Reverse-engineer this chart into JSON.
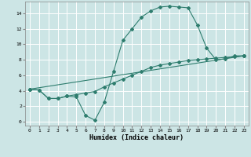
{
  "title": "",
  "xlabel": "Humidex (Indice chaleur)",
  "bg_color": "#cce5e5",
  "grid_color": "#ffffff",
  "line_color": "#2e7d6e",
  "xlim": [
    -0.5,
    23.5
  ],
  "ylim": [
    -0.5,
    15.5
  ],
  "xticks": [
    0,
    1,
    2,
    3,
    4,
    5,
    6,
    7,
    8,
    9,
    10,
    11,
    12,
    13,
    14,
    15,
    16,
    17,
    18,
    19,
    20,
    21,
    22,
    23
  ],
  "yticks": [
    0,
    2,
    4,
    6,
    8,
    10,
    12,
    14
  ],
  "line1_x": [
    0,
    1,
    2,
    3,
    4,
    5,
    6,
    7,
    8,
    9,
    10,
    11,
    12,
    13,
    14,
    15,
    16,
    17,
    18,
    19,
    20,
    21,
    22,
    23
  ],
  "line1_y": [
    4.2,
    4.1,
    3.0,
    3.0,
    3.3,
    3.2,
    0.8,
    0.2,
    2.5,
    6.5,
    10.5,
    12.0,
    13.5,
    14.3,
    14.8,
    14.9,
    14.8,
    14.7,
    12.5,
    9.5,
    8.0,
    8.1,
    8.5,
    8.5
  ],
  "line2_x": [
    0,
    1,
    2,
    3,
    4,
    5,
    6,
    7,
    8,
    9,
    10,
    11,
    12,
    13,
    14,
    15,
    16,
    17,
    18,
    19,
    20,
    21,
    22,
    23
  ],
  "line2_y": [
    4.2,
    4.1,
    3.0,
    3.0,
    3.3,
    3.5,
    3.7,
    3.9,
    4.5,
    5.0,
    5.5,
    6.0,
    6.5,
    7.0,
    7.3,
    7.5,
    7.7,
    7.9,
    8.0,
    8.1,
    8.2,
    8.3,
    8.4,
    8.5
  ],
  "line3_x": [
    0,
    23
  ],
  "line3_y": [
    4.2,
    8.5
  ]
}
